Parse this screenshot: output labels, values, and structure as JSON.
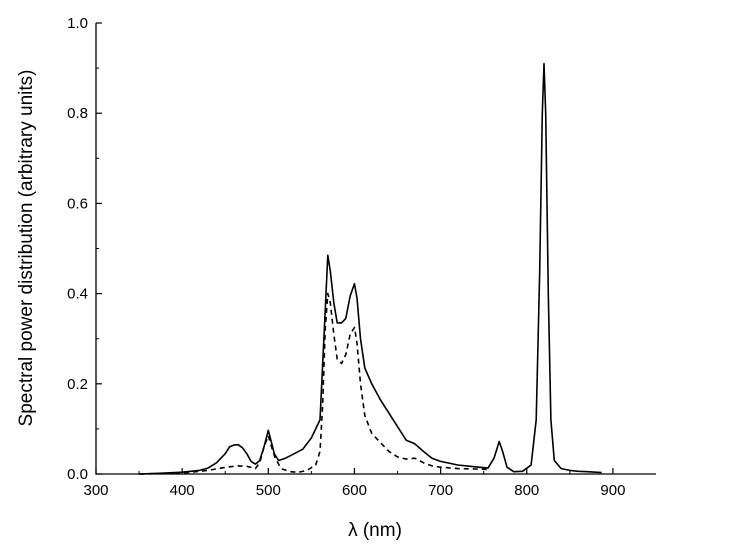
{
  "chart_data": {
    "type": "line",
    "title": "",
    "xlabel": "λ (nm)",
    "ylabel": "Spectral power distribution (arbitrary units)",
    "xlim": [
      300,
      950
    ],
    "ylim": [
      0,
      1.0
    ],
    "x_ticks": [
      "300",
      "400",
      "500",
      "600",
      "700",
      "800",
      "900"
    ],
    "y_ticks": [
      "0.0",
      "0.2",
      "0.4",
      "0.6",
      "0.8",
      "1.0"
    ],
    "grid": false,
    "legend": "none",
    "series": [
      {
        "style": "solid",
        "color": "#000000",
        "points": [
          [
            350,
            0.0
          ],
          [
            380,
            0.002
          ],
          [
            400,
            0.004
          ],
          [
            420,
            0.008
          ],
          [
            430,
            0.013
          ],
          [
            440,
            0.025
          ],
          [
            450,
            0.045
          ],
          [
            455,
            0.06
          ],
          [
            460,
            0.064
          ],
          [
            465,
            0.065
          ],
          [
            470,
            0.058
          ],
          [
            475,
            0.045
          ],
          [
            480,
            0.028
          ],
          [
            485,
            0.022
          ],
          [
            490,
            0.03
          ],
          [
            495,
            0.06
          ],
          [
            500,
            0.097
          ],
          [
            503,
            0.075
          ],
          [
            507,
            0.045
          ],
          [
            512,
            0.03
          ],
          [
            520,
            0.035
          ],
          [
            530,
            0.045
          ],
          [
            540,
            0.055
          ],
          [
            550,
            0.08
          ],
          [
            555,
            0.1
          ],
          [
            560,
            0.12
          ],
          [
            565,
            0.32
          ],
          [
            569,
            0.485
          ],
          [
            572,
            0.45
          ],
          [
            576,
            0.38
          ],
          [
            580,
            0.335
          ],
          [
            585,
            0.335
          ],
          [
            590,
            0.345
          ],
          [
            595,
            0.395
          ],
          [
            600,
            0.422
          ],
          [
            603,
            0.39
          ],
          [
            607,
            0.3
          ],
          [
            612,
            0.235
          ],
          [
            620,
            0.2
          ],
          [
            630,
            0.165
          ],
          [
            640,
            0.135
          ],
          [
            650,
            0.105
          ],
          [
            660,
            0.075
          ],
          [
            670,
            0.067
          ],
          [
            680,
            0.05
          ],
          [
            690,
            0.035
          ],
          [
            700,
            0.028
          ],
          [
            720,
            0.02
          ],
          [
            740,
            0.016
          ],
          [
            755,
            0.013
          ],
          [
            762,
            0.035
          ],
          [
            768,
            0.072
          ],
          [
            772,
            0.05
          ],
          [
            777,
            0.015
          ],
          [
            785,
            0.005
          ],
          [
            795,
            0.006
          ],
          [
            805,
            0.02
          ],
          [
            811,
            0.12
          ],
          [
            815,
            0.45
          ],
          [
            818,
            0.8
          ],
          [
            820,
            0.91
          ],
          [
            822,
            0.8
          ],
          [
            825,
            0.4
          ],
          [
            828,
            0.12
          ],
          [
            832,
            0.03
          ],
          [
            840,
            0.012
          ],
          [
            850,
            0.008
          ],
          [
            860,
            0.006
          ],
          [
            870,
            0.005
          ],
          [
            880,
            0.004
          ],
          [
            887,
            0.003
          ]
        ]
      },
      {
        "style": "dashed",
        "color": "#000000",
        "points": [
          [
            350,
            0.0
          ],
          [
            400,
            0.002
          ],
          [
            430,
            0.008
          ],
          [
            445,
            0.013
          ],
          [
            455,
            0.016
          ],
          [
            465,
            0.018
          ],
          [
            475,
            0.017
          ],
          [
            485,
            0.012
          ],
          [
            490,
            0.025
          ],
          [
            495,
            0.06
          ],
          [
            500,
            0.085
          ],
          [
            503,
            0.065
          ],
          [
            508,
            0.035
          ],
          [
            515,
            0.012
          ],
          [
            525,
            0.005
          ],
          [
            535,
            0.004
          ],
          [
            545,
            0.008
          ],
          [
            555,
            0.02
          ],
          [
            560,
            0.05
          ],
          [
            563,
            0.15
          ],
          [
            566,
            0.32
          ],
          [
            569,
            0.4
          ],
          [
            572,
            0.38
          ],
          [
            576,
            0.31
          ],
          [
            580,
            0.255
          ],
          [
            585,
            0.245
          ],
          [
            590,
            0.265
          ],
          [
            595,
            0.31
          ],
          [
            600,
            0.325
          ],
          [
            603,
            0.29
          ],
          [
            607,
            0.2
          ],
          [
            612,
            0.13
          ],
          [
            620,
            0.09
          ],
          [
            630,
            0.07
          ],
          [
            640,
            0.05
          ],
          [
            650,
            0.038
          ],
          [
            660,
            0.033
          ],
          [
            670,
            0.035
          ],
          [
            680,
            0.025
          ],
          [
            690,
            0.018
          ],
          [
            700,
            0.015
          ],
          [
            720,
            0.012
          ],
          [
            740,
            0.011
          ],
          [
            755,
            0.01
          ]
        ]
      }
    ]
  }
}
